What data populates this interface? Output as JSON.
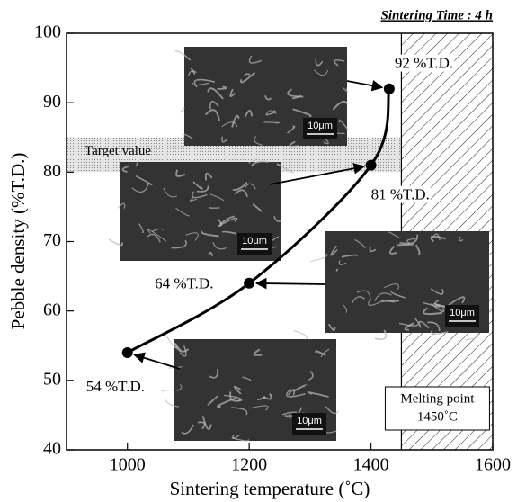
{
  "chart_data": {
    "type": "line",
    "title": "Sintering Time : 4 h",
    "x_label": "Sintering temperature (˚C)",
    "y_label": "Pebble density (%T.D.)",
    "x": [
      1000,
      1200,
      1400,
      1430
    ],
    "values": [
      54,
      64,
      81,
      92
    ],
    "value_labels": [
      "54 %T.D.",
      "64 %T.D.",
      "81 %T.D.",
      "92 %T.D."
    ],
    "color": "#000000",
    "xlim": [
      900,
      1600
    ],
    "xticks": [
      1000,
      1200,
      1400,
      1600
    ],
    "ylim": [
      40,
      100
    ],
    "yticks": [
      40,
      50,
      60,
      70,
      80,
      90,
      100
    ],
    "target_band": {
      "label": "Target value",
      "range": [
        80,
        85
      ]
    },
    "melting_point": {
      "value": 1450,
      "lines": [
        "Melting point",
        "1450˚C"
      ]
    },
    "micrographs": [
      {
        "scale_label": "10μm"
      },
      {
        "scale_label": "10μm"
      },
      {
        "scale_label": "10μm"
      },
      {
        "scale_label": "10μm"
      }
    ]
  }
}
